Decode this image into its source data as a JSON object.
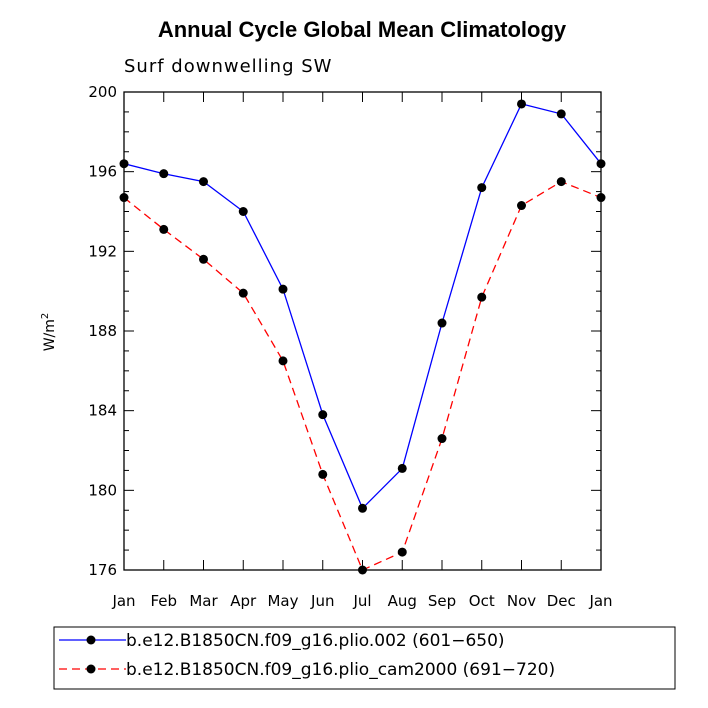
{
  "chart_data": {
    "type": "line",
    "title": "Annual Cycle Global Mean Climatology",
    "subtitle": "Surf downwelling SW",
    "ylabel": "W/m",
    "ylabel_sup": "2",
    "xlabel": "",
    "categories": [
      "Jan",
      "Feb",
      "Mar",
      "Apr",
      "May",
      "Jun",
      "Jul",
      "Aug",
      "Sep",
      "Oct",
      "Nov",
      "Dec",
      "Jan"
    ],
    "ylim": [
      176,
      200
    ],
    "yticks": [
      176,
      180,
      184,
      188,
      192,
      196,
      200
    ],
    "series": [
      {
        "name": "b.e12.B1850CN.f09_g16.plio.002 (601−650)",
        "color": "#0000ff",
        "dash": "solid",
        "values": [
          196.4,
          195.9,
          195.5,
          194.0,
          190.1,
          183.8,
          179.1,
          181.1,
          188.4,
          195.2,
          199.4,
          198.9,
          196.4
        ]
      },
      {
        "name": "b.e12.B1850CN.f09_g16.plio_cam2000 (691−720)",
        "color": "#ff0000",
        "dash": "dashed",
        "values": [
          194.7,
          193.1,
          191.6,
          189.9,
          186.5,
          180.8,
          176.0,
          176.9,
          182.6,
          189.7,
          194.3,
          195.5,
          194.7
        ]
      }
    ]
  }
}
